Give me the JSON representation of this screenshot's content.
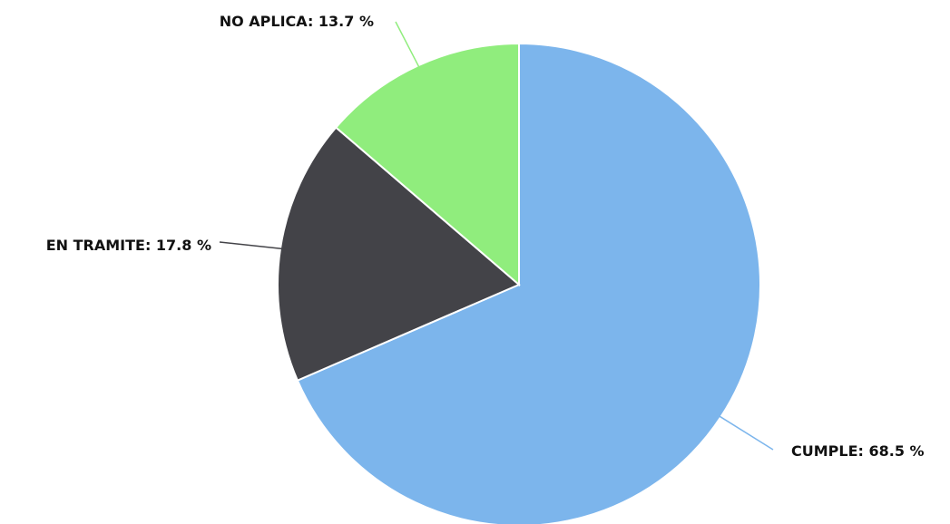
{
  "chart_data": {
    "type": "pie",
    "title": "",
    "legend": "none",
    "slices": [
      {
        "label": "CUMPLE",
        "value": 68.5,
        "display": "CUMPLE: 68.5 %",
        "color": "#7cb5ec"
      },
      {
        "label": "EN TRAMITE",
        "value": 17.8,
        "display": "EN TRAMITE: 17.8 %",
        "color": "#434348"
      },
      {
        "label": "NO APLICA",
        "value": 13.7,
        "display": "NO APLICA: 13.7 %",
        "color": "#90ed7d"
      }
    ]
  }
}
